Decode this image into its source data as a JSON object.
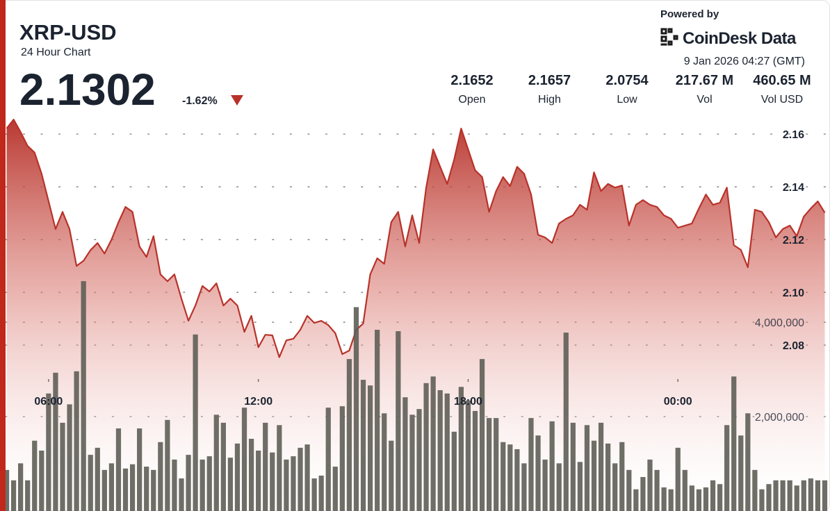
{
  "header": {
    "title": "XRP-USD",
    "subtitle": "24 Hour Chart",
    "price": "2.1302",
    "change": "-1.62%",
    "powered_by": "Powered by",
    "brand": "CoinDesk Data",
    "timestamp": "9 Jan 2026 04:27 (GMT)",
    "stats": [
      {
        "value": "2.1652",
        "label": "Open"
      },
      {
        "value": "2.1657",
        "label": "High"
      },
      {
        "value": "2.0754",
        "label": "Low"
      },
      {
        "value": "217.67 M",
        "label": "Vol"
      },
      {
        "value": "460.65 M",
        "label": "Vol USD"
      }
    ]
  },
  "chart_data": {
    "type": "line",
    "x": [
      4.8,
      5,
      5.2,
      5.4,
      5.6,
      5.8,
      6,
      6.2,
      6.4,
      6.6,
      6.8,
      7,
      7.2,
      7.4,
      7.6,
      7.8,
      8,
      8.2,
      8.4,
      8.6,
      8.8,
      9,
      9.2,
      9.4,
      9.6,
      9.8,
      10,
      10.2,
      10.4,
      10.6,
      10.8,
      11,
      11.2,
      11.4,
      11.6,
      11.8,
      12,
      12.2,
      12.4,
      12.6,
      12.8,
      13,
      13.2,
      13.4,
      13.6,
      13.8,
      14,
      14.2,
      14.4,
      14.6,
      14.8,
      15,
      15.2,
      15.4,
      15.6,
      15.8,
      16,
      16.2,
      16.4,
      16.6,
      16.8,
      17,
      17.2,
      17.4,
      17.6,
      17.8,
      18,
      18.2,
      18.4,
      18.6,
      18.8,
      19,
      19.2,
      19.4,
      19.6,
      19.8,
      20,
      20.2,
      20.4,
      20.6,
      20.8,
      21,
      21.2,
      21.4,
      21.6,
      21.8,
      22,
      22.2,
      22.4,
      22.6,
      22.8,
      23,
      23.2,
      23.4,
      23.6,
      23.8,
      24,
      24.2,
      24.4,
      24.6,
      24.8,
      25,
      25.2,
      25.4,
      25.6,
      25.8,
      26,
      26.2,
      26.4,
      26.6,
      26.8,
      27,
      27.2,
      27.4,
      27.6,
      27.8,
      28,
      28.2
    ],
    "series": [
      {
        "type": "area",
        "color": "#b8322a",
        "values": [
          2.1621,
          2.1655,
          2.1608,
          2.1555,
          2.153,
          2.145,
          2.1345,
          2.124,
          2.1305,
          2.124,
          2.11,
          2.112,
          2.116,
          2.1187,
          2.1147,
          2.12,
          2.1266,
          2.1324,
          2.1305,
          2.1174,
          2.1134,
          2.1213,
          2.1068,
          2.1042,
          2.1068,
          2.0976,
          2.0892,
          2.095,
          2.1024,
          2.1003,
          2.1034,
          2.095,
          2.0976,
          2.095,
          2.085,
          2.0911,
          2.0792,
          2.0839,
          2.0837,
          2.0754,
          2.0818,
          2.0824,
          2.0858,
          2.0911,
          2.0884,
          2.0892,
          2.0876,
          2.0845,
          2.0766,
          2.0779,
          2.0858,
          2.0882,
          2.1068,
          2.1129,
          2.1108,
          2.1266,
          2.1305,
          2.1174,
          2.1292,
          2.1187,
          2.1397,
          2.1542,
          2.1476,
          2.1411,
          2.1503,
          2.1621,
          2.1542,
          2.1463,
          2.1437,
          2.1305,
          2.1384,
          2.1437,
          2.1403,
          2.1476,
          2.145,
          2.1371,
          2.1218,
          2.1208,
          2.1187,
          2.1261,
          2.1279,
          2.1292,
          2.1332,
          2.1313,
          2.1455,
          2.1384,
          2.1411,
          2.1397,
          2.1405,
          2.1253,
          2.1332,
          2.135,
          2.1332,
          2.1324,
          2.1292,
          2.1279,
          2.1245,
          2.1253,
          2.1261,
          2.1318,
          2.1371,
          2.1332,
          2.134,
          2.1397,
          2.1179,
          2.1161,
          2.1095,
          2.1313,
          2.1305,
          2.1266,
          2.1208,
          2.124,
          2.1253,
          2.1213,
          2.1287,
          2.1318,
          2.1345,
          2.1302
        ]
      },
      {
        "type": "bar",
        "axis": "y2",
        "color": "#5e5e56",
        "values": [
          870000,
          650000,
          1010000,
          650000,
          1490000,
          1280000,
          2490000,
          2930000,
          1870000,
          2260000,
          2960000,
          4870000,
          1190000,
          1340000,
          870000,
          1010000,
          1750000,
          900000,
          990000,
          1750000,
          940000,
          870000,
          1460000,
          1930000,
          1090000,
          690000,
          1190000,
          3740000,
          1090000,
          1160000,
          2040000,
          1870000,
          1130000,
          1430000,
          2190000,
          1530000,
          1280000,
          1870000,
          1240000,
          1820000,
          1090000,
          1160000,
          1340000,
          1410000,
          690000,
          750000,
          2190000,
          940000,
          2220000,
          3220000,
          4320000,
          2780000,
          2660000,
          3840000,
          2070000,
          1490000,
          3810000,
          2410000,
          2040000,
          2160000,
          2710000,
          2850000,
          2560000,
          2490000,
          1680000,
          2630000,
          2340000,
          2120000,
          3220000,
          1970000,
          1970000,
          1460000,
          1410000,
          1310000,
          1010000,
          1970000,
          1600000,
          1090000,
          1900000,
          1010000,
          3780000,
          1870000,
          1040000,
          1820000,
          1490000,
          1870000,
          1430000,
          1010000,
          1460000,
          870000,
          460000,
          720000,
          1090000,
          870000,
          500000,
          460000,
          1340000,
          870000,
          540000,
          460000,
          500000,
          650000,
          570000,
          1820000,
          2850000,
          1600000,
          2070000,
          870000,
          460000,
          570000,
          650000,
          650000,
          650000,
          540000,
          650000,
          690000,
          650000,
          650000
        ]
      }
    ],
    "xlim": [
      4.77,
      28.27
    ],
    "xticks": [
      {
        "value": 6,
        "label": "06:00"
      },
      {
        "value": 12,
        "label": "12:00"
      },
      {
        "value": 18,
        "label": "18:00"
      },
      {
        "value": 24,
        "label": "00:00"
      }
    ],
    "ylim": [
      2.0171,
      2.1674
    ],
    "yticks": [
      2.16,
      2.14,
      2.12,
      {
        "value": 2.1,
        "label": "2.10"
      },
      2.08
    ],
    "y2lim": [
      0,
      8400000
    ],
    "y2ticks": [
      {
        "value": 2000000,
        "label": "2,000,000"
      },
      {
        "value": 4000000,
        "label": "4,000,000"
      }
    ],
    "grid": true
  }
}
